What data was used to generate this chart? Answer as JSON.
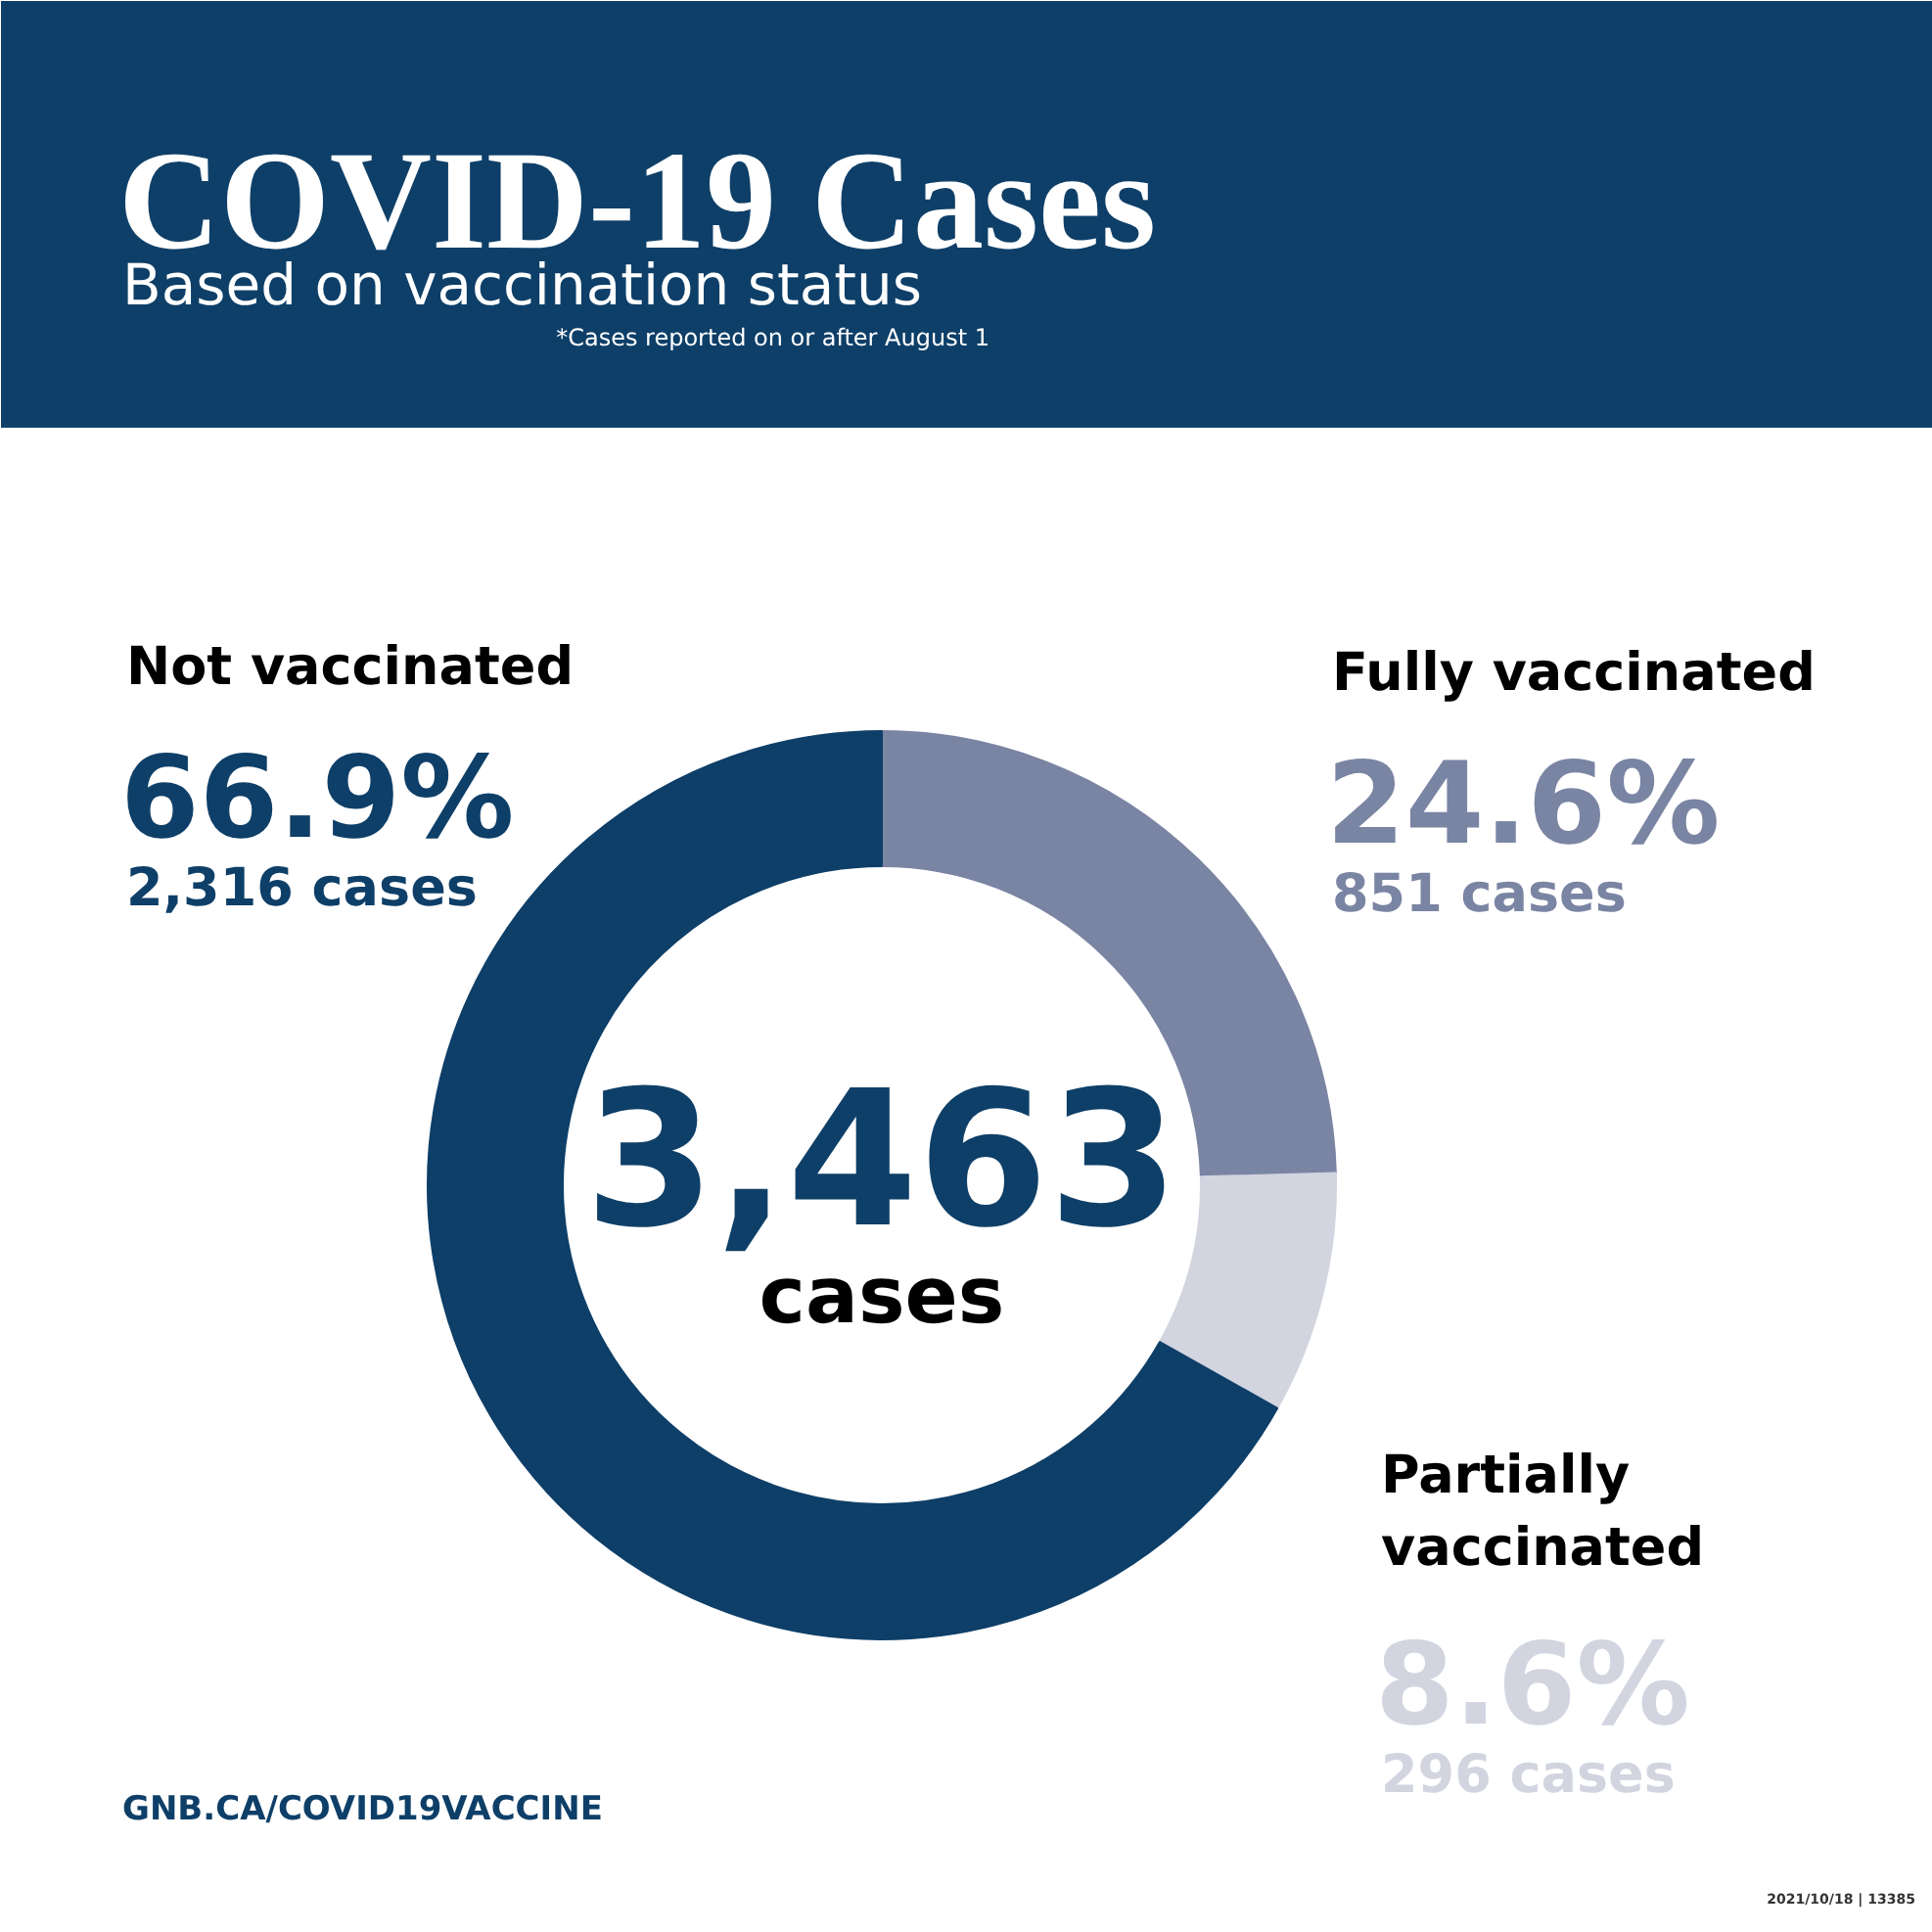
{
  "chart_data": {
    "type": "donut",
    "title": "COVID-19 Cases",
    "subtitle": "Based on vaccination status",
    "categories": [
      "Fully vaccinated",
      "Partially vaccinated",
      "Not vaccinated"
    ],
    "values": [
      24.6,
      8.6,
      66.9
    ],
    "value_labels": [
      "24.6%",
      "8.6%",
      "66.9%"
    ],
    "colors": [
      "#7a84a3",
      "#d2d4e0",
      "#0e3f68"
    ],
    "annotations": [
      "851 cases",
      "296 cases",
      "2,316 cases",
      "3,463",
      "cases",
      "*Cases reported on or after August 1",
      "GNB.CA/COVID19VACCINE",
      "2021/10/18 | 13385"
    ]
  }
}
